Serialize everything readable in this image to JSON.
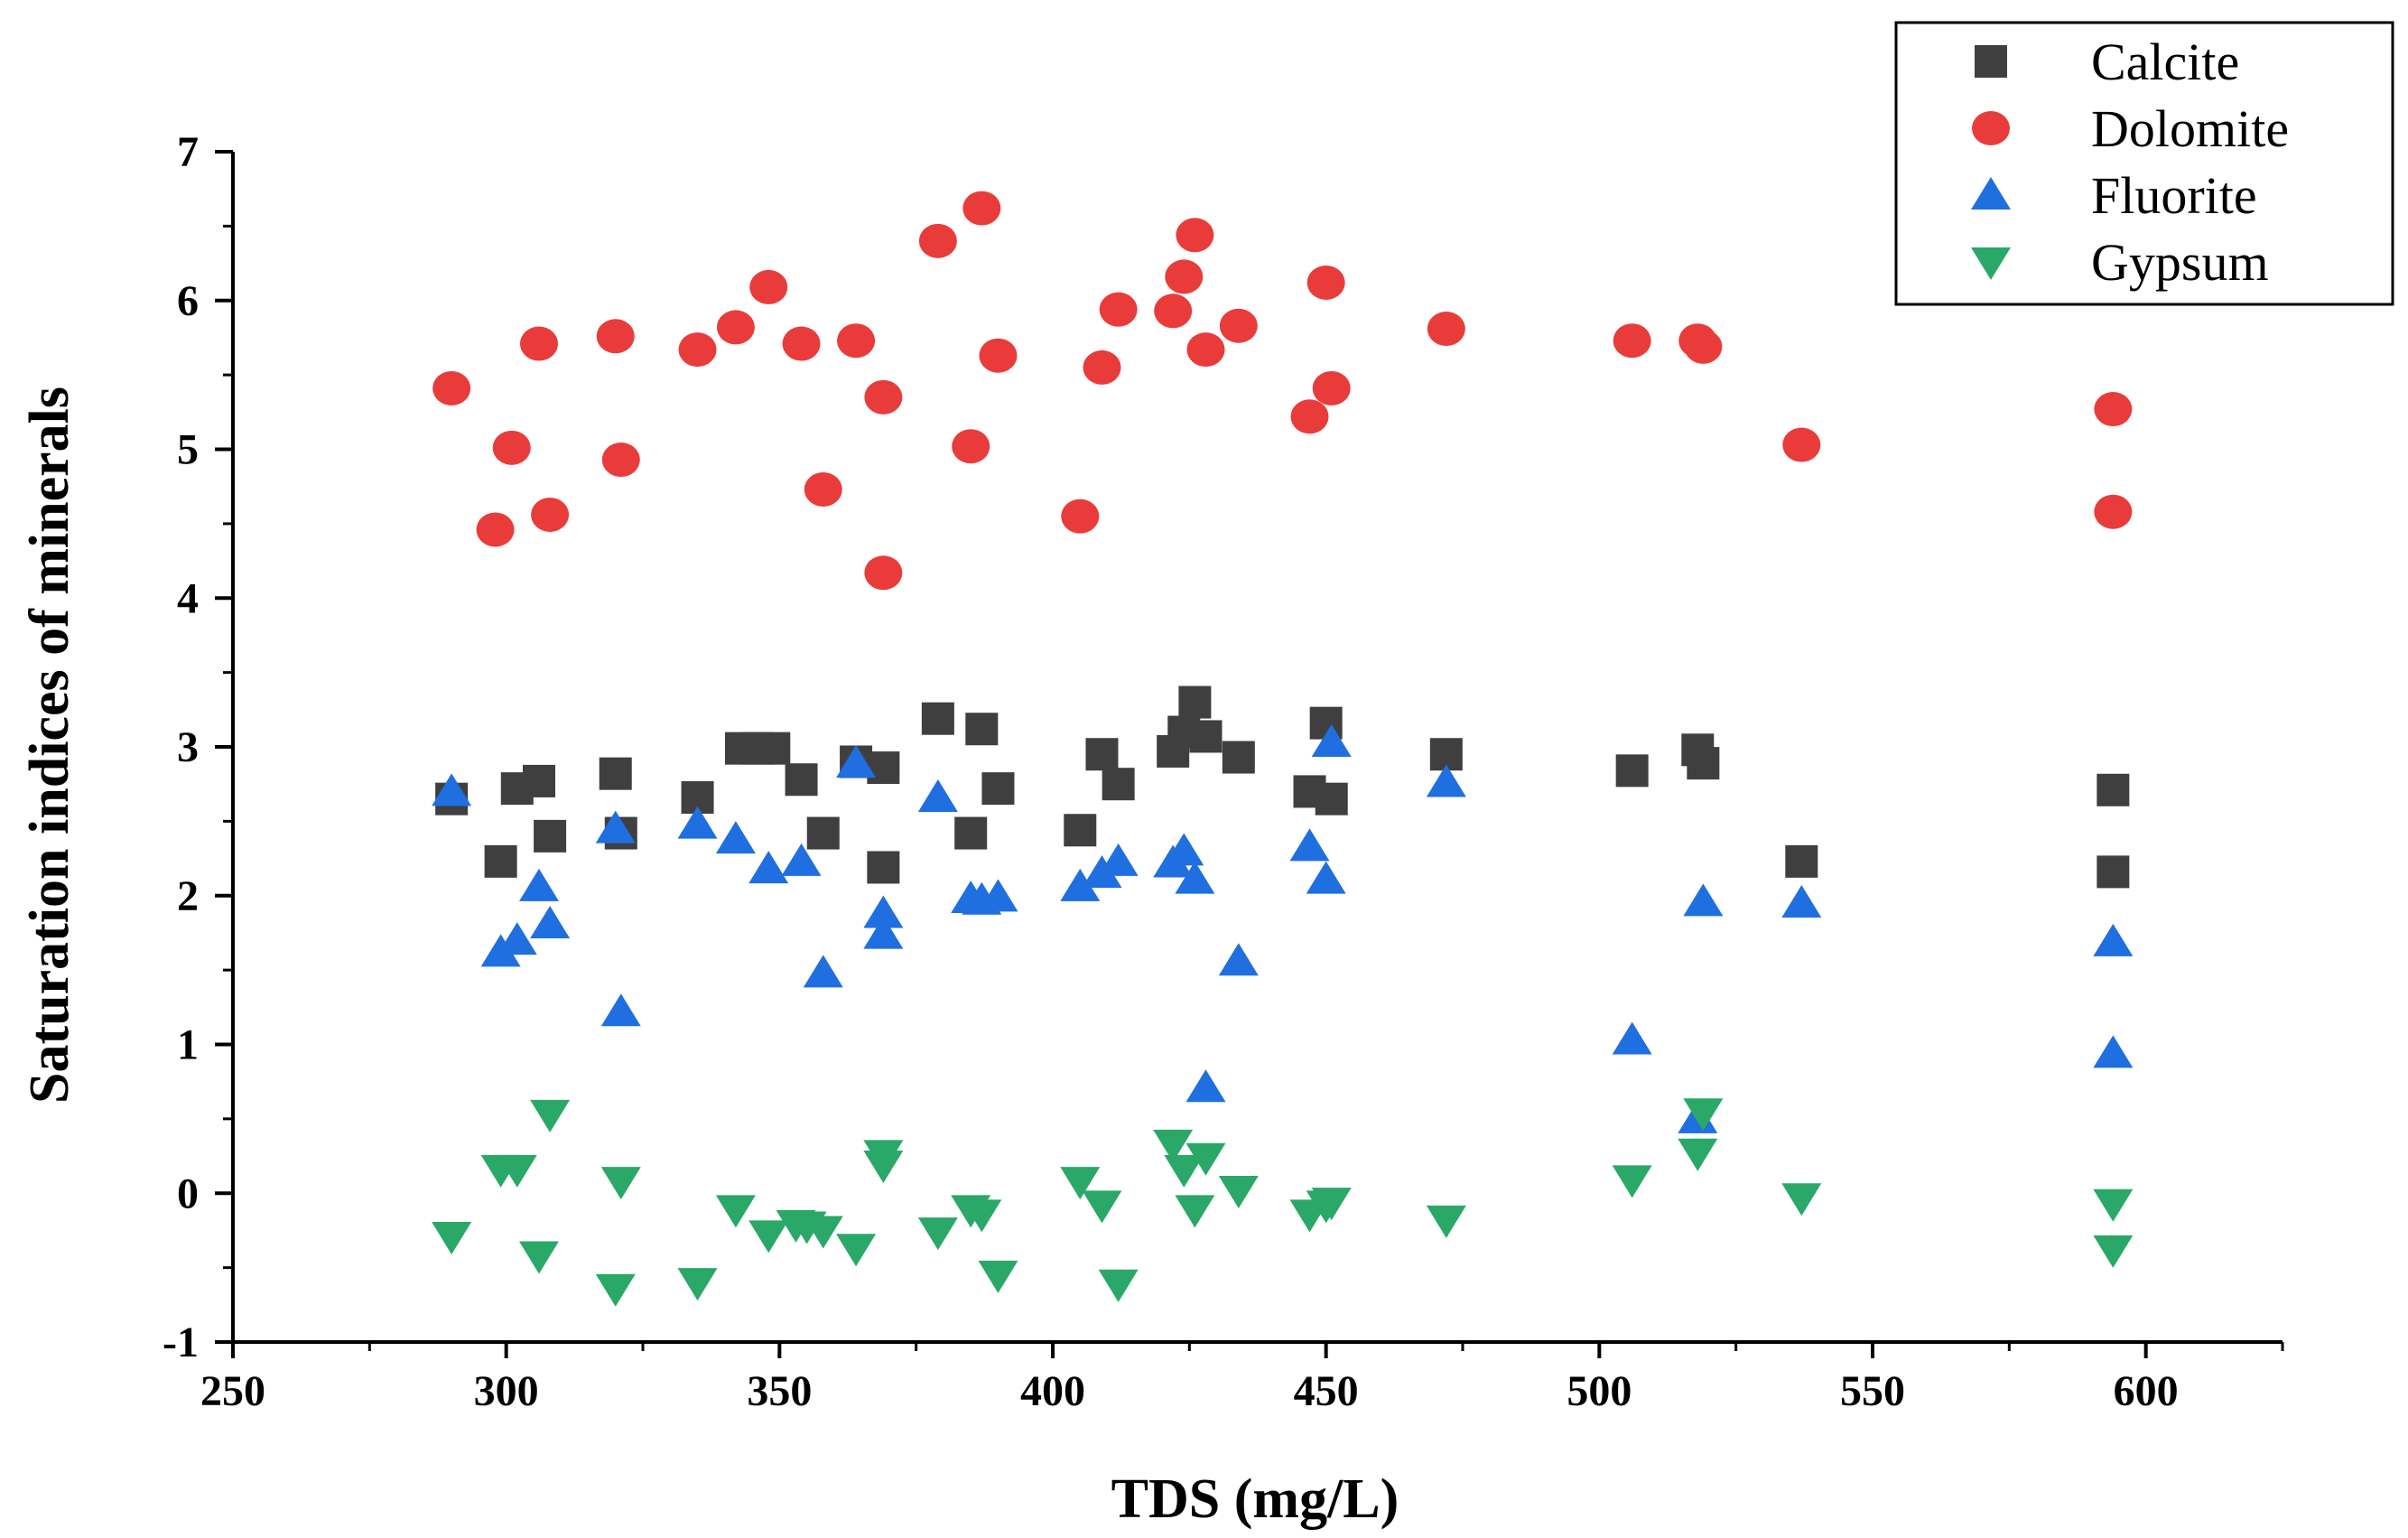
{
  "chart_data": {
    "type": "scatter",
    "title": "",
    "xlabel": "TDS (mg/L)",
    "ylabel": "Saturation indices of minerals",
    "xlim": [
      250,
      625
    ],
    "ylim": [
      -1,
      7
    ],
    "xticks": [
      250,
      300,
      350,
      400,
      450,
      500,
      550,
      600
    ],
    "yticks": [
      -1,
      0,
      1,
      2,
      3,
      4,
      5,
      6,
      7
    ],
    "xtick_labels": [
      "250",
      "300",
      "350",
      "400",
      "450",
      "500",
      "550",
      "600"
    ],
    "ytick_labels": [
      "-1",
      "0",
      "1",
      "2",
      "3",
      "4",
      "5",
      "6",
      "7"
    ],
    "grid": false,
    "legend_position": "top-right",
    "series": [
      {
        "name": "Calcite",
        "marker": "square",
        "color": "#3f3f3f",
        "points": [
          [
            290,
            2.65
          ],
          [
            299,
            2.23
          ],
          [
            302,
            2.72
          ],
          [
            306,
            2.77
          ],
          [
            308,
            2.4
          ],
          [
            320,
            2.82
          ],
          [
            321,
            2.42
          ],
          [
            335,
            2.66
          ],
          [
            343,
            2.99
          ],
          [
            346,
            2.99
          ],
          [
            349,
            2.99
          ],
          [
            354,
            2.78
          ],
          [
            358,
            2.42
          ],
          [
            364,
            2.9
          ],
          [
            369,
            2.86
          ],
          [
            369,
            2.19
          ],
          [
            379,
            3.19
          ],
          [
            385,
            2.42
          ],
          [
            387,
            3.12
          ],
          [
            390,
            2.72
          ],
          [
            405,
            2.44
          ],
          [
            409,
            2.95
          ],
          [
            412,
            2.75
          ],
          [
            422,
            2.97
          ],
          [
            424,
            3.1
          ],
          [
            426,
            3.3
          ],
          [
            428,
            3.07
          ],
          [
            434,
            2.93
          ],
          [
            447,
            2.7
          ],
          [
            450,
            3.16
          ],
          [
            451,
            2.65
          ],
          [
            472,
            2.95
          ],
          [
            506,
            2.84
          ],
          [
            518,
            2.98
          ],
          [
            519,
            2.89
          ],
          [
            537,
            2.23
          ],
          [
            594,
            2.71
          ],
          [
            594,
            2.16
          ]
        ]
      },
      {
        "name": "Dolomite",
        "marker": "circle",
        "color": "#ea3b3b",
        "points": [
          [
            290,
            5.41
          ],
          [
            298,
            4.46
          ],
          [
            301,
            5.01
          ],
          [
            306,
            5.71
          ],
          [
            308,
            4.56
          ],
          [
            320,
            5.76
          ],
          [
            321,
            4.93
          ],
          [
            335,
            5.67
          ],
          [
            342,
            5.82
          ],
          [
            348,
            6.09
          ],
          [
            354,
            5.71
          ],
          [
            358,
            4.73
          ],
          [
            364,
            5.73
          ],
          [
            369,
            5.35
          ],
          [
            369,
            4.17
          ],
          [
            379,
            6.4
          ],
          [
            385,
            5.02
          ],
          [
            387,
            6.62
          ],
          [
            390,
            5.63
          ],
          [
            405,
            4.55
          ],
          [
            409,
            5.55
          ],
          [
            412,
            5.94
          ],
          [
            422,
            5.93
          ],
          [
            424,
            6.16
          ],
          [
            426,
            6.44
          ],
          [
            428,
            5.67
          ],
          [
            434,
            5.83
          ],
          [
            447,
            5.22
          ],
          [
            450,
            6.12
          ],
          [
            451,
            5.41
          ],
          [
            472,
            5.81
          ],
          [
            506,
            5.73
          ],
          [
            518,
            5.73
          ],
          [
            519,
            5.69
          ],
          [
            537,
            5.03
          ],
          [
            594,
            5.27
          ],
          [
            594,
            4.58
          ]
        ]
      },
      {
        "name": "Fluorite",
        "marker": "triangle-up",
        "color": "#1f6fe0",
        "points": [
          [
            290,
            2.7
          ],
          [
            299,
            1.62
          ],
          [
            302,
            1.7
          ],
          [
            306,
            2.06
          ],
          [
            308,
            1.81
          ],
          [
            320,
            2.45
          ],
          [
            321,
            1.22
          ],
          [
            335,
            2.48
          ],
          [
            342,
            2.38
          ],
          [
            348,
            2.18
          ],
          [
            354,
            2.23
          ],
          [
            358,
            1.48
          ],
          [
            364,
            2.89
          ],
          [
            369,
            1.88
          ],
          [
            369,
            1.74
          ],
          [
            379,
            2.66
          ],
          [
            385,
            1.98
          ],
          [
            387,
            1.97
          ],
          [
            390,
            1.99
          ],
          [
            405,
            2.06
          ],
          [
            409,
            2.15
          ],
          [
            412,
            2.23
          ],
          [
            422,
            2.22
          ],
          [
            424,
            2.3
          ],
          [
            426,
            2.11
          ],
          [
            428,
            0.71
          ],
          [
            434,
            1.56
          ],
          [
            447,
            2.33
          ],
          [
            450,
            2.11
          ],
          [
            451,
            3.03
          ],
          [
            472,
            2.76
          ],
          [
            506,
            1.03
          ],
          [
            518,
            0.5
          ],
          [
            519,
            1.96
          ],
          [
            537,
            1.95
          ],
          [
            594,
            1.69
          ],
          [
            594,
            0.94
          ]
        ]
      },
      {
        "name": "Gypsum",
        "marker": "triangle-down",
        "color": "#2aa867",
        "points": [
          [
            290,
            -0.29
          ],
          [
            299,
            0.16
          ],
          [
            302,
            0.16
          ],
          [
            306,
            -0.42
          ],
          [
            308,
            0.53
          ],
          [
            320,
            -0.64
          ],
          [
            321,
            0.08
          ],
          [
            335,
            -0.6
          ],
          [
            342,
            -0.11
          ],
          [
            348,
            -0.28
          ],
          [
            353,
            -0.21
          ],
          [
            355,
            -0.22
          ],
          [
            358,
            -0.25
          ],
          [
            364,
            -0.37
          ],
          [
            369,
            0.26
          ],
          [
            369,
            0.19
          ],
          [
            379,
            -0.26
          ],
          [
            385,
            -0.11
          ],
          [
            387,
            -0.14
          ],
          [
            390,
            -0.55
          ],
          [
            405,
            0.08
          ],
          [
            409,
            -0.08
          ],
          [
            412,
            -0.61
          ],
          [
            422,
            0.33
          ],
          [
            424,
            0.16
          ],
          [
            426,
            -0.11
          ],
          [
            428,
            0.24
          ],
          [
            434,
            0.02
          ],
          [
            447,
            -0.14
          ],
          [
            450,
            -0.08
          ],
          [
            451,
            -0.06
          ],
          [
            472,
            -0.18
          ],
          [
            506,
            0.09
          ],
          [
            518,
            0.27
          ],
          [
            519,
            0.54
          ],
          [
            537,
            -0.03
          ],
          [
            594,
            -0.07
          ],
          [
            594,
            -0.38
          ]
        ]
      }
    ]
  }
}
